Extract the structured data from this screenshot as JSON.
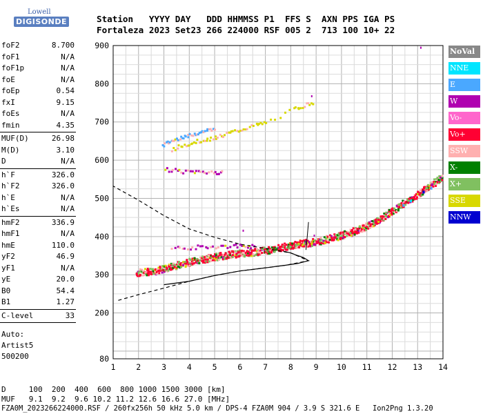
{
  "logo": {
    "line1": "Lowell",
    "line2": "DIGISONDE"
  },
  "header": {
    "labels": "Station   YYYY DAY   DDD HHMMSS P1  FFS S  AXN PPS IGA PS",
    "values": "Fortaleza 2023 Set23 266 224000 RSF 005 2  713 100 10+ 22"
  },
  "params": {
    "group1": [
      {
        "label": "foF2",
        "value": "8.700"
      },
      {
        "label": "foF1",
        "value": "N/A"
      },
      {
        "label": "foF1p",
        "value": "N/A"
      },
      {
        "label": "foE",
        "value": "N/A"
      },
      {
        "label": "foEp",
        "value": "0.54"
      },
      {
        "label": "fxI",
        "value": "9.15"
      },
      {
        "label": "foEs",
        "value": "N/A"
      },
      {
        "label": "fmin",
        "value": "4.35"
      }
    ],
    "group2": [
      {
        "label": "MUF(D)",
        "value": "26.98"
      },
      {
        "label": "M(D)",
        "value": "3.10"
      },
      {
        "label": "D",
        "value": "N/A"
      }
    ],
    "group3": [
      {
        "label": "h`F",
        "value": "326.0"
      },
      {
        "label": "h`F2",
        "value": "326.0"
      },
      {
        "label": "h`E",
        "value": "N/A"
      },
      {
        "label": "h`Es",
        "value": "N/A"
      }
    ],
    "group4": [
      {
        "label": "hmF2",
        "value": "336.9"
      },
      {
        "label": "hmF1",
        "value": "N/A"
      },
      {
        "label": "hmE",
        "value": "110.0"
      },
      {
        "label": "yF2",
        "value": "46.9"
      },
      {
        "label": "yF1",
        "value": "N/A"
      },
      {
        "label": "yE",
        "value": "20.0"
      },
      {
        "label": "B0",
        "value": "54.4"
      },
      {
        "label": "B1",
        "value": "1.27"
      }
    ],
    "group5": [
      {
        "label": "C-level",
        "value": "33"
      }
    ],
    "auto": [
      "Auto:",
      "Artist5",
      "500200"
    ]
  },
  "legend": [
    {
      "label": "NoVal",
      "color": "#888888"
    },
    {
      "label": "NNE",
      "color": "#00e5ff"
    },
    {
      "label": "E",
      "color": "#4aa8ff"
    },
    {
      "label": "W",
      "color": "#b000b0"
    },
    {
      "label": "Vo-",
      "color": "#ff66cc"
    },
    {
      "label": "Vo+",
      "color": "#ff0033"
    },
    {
      "label": "SSW",
      "color": "#ffb0b0"
    },
    {
      "label": "X-",
      "color": "#008000"
    },
    {
      "label": "X+",
      "color": "#80c060"
    },
    {
      "label": "SSE",
      "color": "#d8d800"
    },
    {
      "label": "NNW",
      "color": "#0000d0"
    }
  ],
  "footer": {
    "line1": "D     100  200  400  600  800 1000 1500 3000 [km]",
    "line2": "MUF   9.1  9.2  9.6 10.2 11.2 12.6 16.6 27.0 [MHz]",
    "fileline": "FZA0M_2023266224000.RSF / 260fx256h 50 kHz 5.0 km / DPS-4 FZA0M 904 / 3.9 S 321.6 E   Ion2Png 1.3.20"
  },
  "chart_data": {
    "type": "scatter",
    "title": "",
    "xlabel": "",
    "ylabel": "",
    "xlim": [
      1,
      14
    ],
    "ylim": [
      80,
      900
    ],
    "x_ticks": [
      "1",
      "2",
      "3",
      "4",
      "5",
      "6",
      "7",
      "8",
      "9",
      "10",
      "11",
      "12",
      "13",
      "14"
    ],
    "y_ticks": [
      "80",
      "200",
      "300",
      "400",
      "500",
      "600",
      "700",
      "800",
      "900"
    ],
    "grid": true,
    "series": [
      {
        "name": "O-trace (F2)",
        "color": "#ff0033",
        "points": [
          [
            1.9,
            307
          ],
          [
            2.3,
            310
          ],
          [
            2.7,
            313
          ],
          [
            3.0,
            318
          ],
          [
            3.3,
            324
          ],
          [
            3.6,
            329
          ],
          [
            3.9,
            334
          ],
          [
            4.2,
            338
          ],
          [
            4.5,
            342
          ],
          [
            4.8,
            346
          ],
          [
            5.1,
            350
          ],
          [
            5.4,
            353
          ],
          [
            5.7,
            356
          ],
          [
            6.0,
            358
          ],
          [
            6.3,
            360
          ],
          [
            6.6,
            362
          ],
          [
            6.9,
            365
          ],
          [
            7.2,
            368
          ],
          [
            7.5,
            372
          ],
          [
            7.8,
            376
          ],
          [
            8.1,
            380
          ],
          [
            8.4,
            384
          ],
          [
            8.7,
            386
          ]
        ]
      },
      {
        "name": "X-trace",
        "color": "#ff0033",
        "points": [
          [
            8.6,
            383
          ],
          [
            8.9,
            388
          ],
          [
            9.2,
            392
          ],
          [
            9.5,
            397
          ],
          [
            9.8,
            402
          ],
          [
            10.1,
            408
          ],
          [
            10.4,
            414
          ],
          [
            10.7,
            422
          ],
          [
            11.0,
            430
          ],
          [
            11.3,
            440
          ],
          [
            11.6,
            452
          ],
          [
            11.9,
            466
          ],
          [
            12.2,
            480
          ],
          [
            12.5,
            492
          ],
          [
            12.8,
            505
          ],
          [
            13.1,
            518
          ],
          [
            13.4,
            532
          ],
          [
            13.7,
            546
          ],
          [
            13.95,
            558
          ]
        ]
      },
      {
        "name": "Oblique upper",
        "color": "#4aa8ff",
        "points": [
          [
            2.9,
            640
          ],
          [
            3.2,
            650
          ],
          [
            3.5,
            658
          ],
          [
            3.8,
            665
          ],
          [
            4.1,
            670
          ],
          [
            4.4,
            675
          ],
          [
            4.7,
            680
          ],
          [
            5.0,
            682
          ]
        ]
      },
      {
        "name": "Oblique upper SSE",
        "color": "#d8d800",
        "points": [
          [
            3.3,
            630
          ],
          [
            3.7,
            640
          ],
          [
            4.1,
            648
          ],
          [
            4.5,
            655
          ],
          [
            4.9,
            660
          ],
          [
            5.3,
            668
          ],
          [
            5.7,
            676
          ],
          [
            6.1,
            684
          ],
          [
            6.6,
            693
          ],
          [
            7.0,
            700
          ],
          [
            8.1,
            735
          ],
          [
            8.5,
            745
          ],
          [
            8.9,
            755
          ]
        ]
      },
      {
        "name": "Oblique lower W",
        "color": "#b000b0",
        "points": [
          [
            3.0,
            578
          ],
          [
            3.5,
            574
          ],
          [
            4.0,
            572
          ],
          [
            4.5,
            571
          ],
          [
            5.0,
            571
          ],
          [
            5.3,
            570
          ]
        ]
      },
      {
        "name": "W band",
        "color": "#b000b0",
        "points": [
          [
            3.3,
            372
          ],
          [
            3.9,
            373
          ],
          [
            4.5,
            375
          ],
          [
            5.1,
            376
          ],
          [
            5.7,
            377
          ],
          [
            6.2,
            378
          ],
          [
            6.6,
            376
          ]
        ]
      }
    ],
    "profile": {
      "name": "Electron density profile",
      "points": [
        [
          3.0,
          274
        ],
        [
          4.0,
          283
        ],
        [
          5.0,
          298
        ],
        [
          6.0,
          310
        ],
        [
          7.0,
          318
        ],
        [
          7.8,
          325
        ],
        [
          8.3,
          330
        ],
        [
          8.7,
          336.9
        ],
        [
          8.5,
          345
        ],
        [
          8.2,
          352
        ],
        [
          8.0,
          357
        ],
        [
          7.7,
          362
        ]
      ]
    },
    "profile_dashed": {
      "name": "Extrapolated profile",
      "points": [
        [
          1.2,
          233
        ],
        [
          2.0,
          248
        ],
        [
          3.0,
          265
        ],
        [
          4.0,
          283
        ],
        [
          5.0,
          298
        ],
        [
          6.0,
          310
        ],
        [
          7.0,
          318
        ],
        [
          7.8,
          325
        ],
        [
          8.7,
          336.9
        ],
        [
          8.0,
          357
        ],
        [
          7.0,
          369
        ],
        [
          6.0,
          380
        ],
        [
          5.0,
          398
        ],
        [
          4.0,
          420
        ],
        [
          3.0,
          455
        ],
        [
          2.0,
          495
        ],
        [
          1.0,
          532
        ]
      ]
    }
  }
}
